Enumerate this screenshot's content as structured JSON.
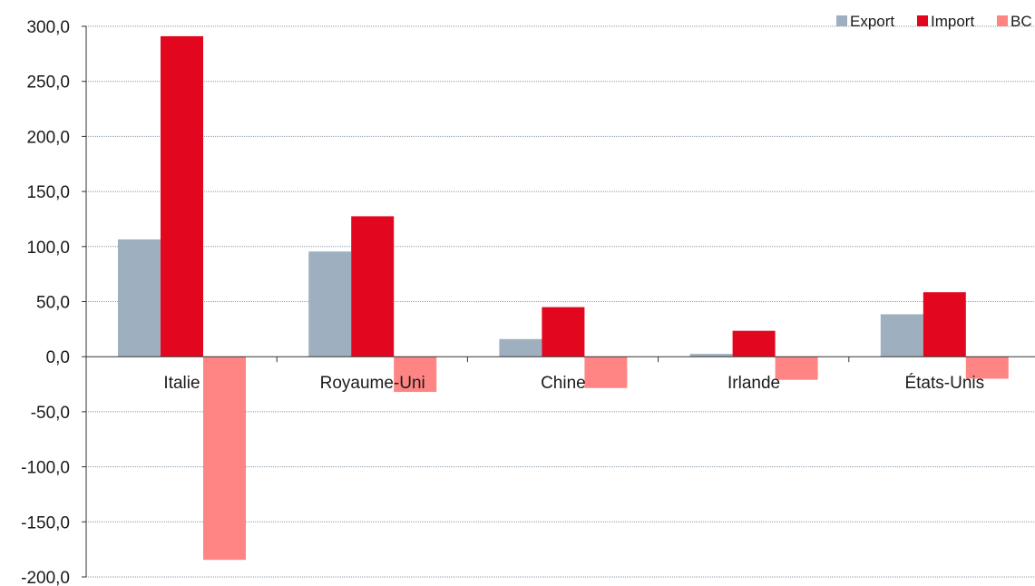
{
  "chart_data": {
    "type": "bar",
    "title": "",
    "xlabel": "",
    "ylabel": "",
    "categories": [
      "Italie",
      "Royaume-Uni",
      "Chine",
      "Irlande",
      "États-Unis"
    ],
    "series": [
      {
        "name": "Export",
        "color": "#9eb0bf",
        "values": [
          106.5,
          95.5,
          16.0,
          2.5,
          38.5
        ]
      },
      {
        "name": "Import",
        "color": "#e2061e",
        "values": [
          291.0,
          127.5,
          45.0,
          23.5,
          58.5
        ]
      },
      {
        "name": "BC",
        "color": "#ff8585",
        "values": [
          -184.5,
          -32.0,
          -28.5,
          -21.0,
          -20.0
        ]
      }
    ],
    "ylim": [
      -200,
      300
    ],
    "yticks": [
      300,
      250,
      200,
      150,
      100,
      50,
      0,
      -50,
      -100,
      -150,
      -200
    ],
    "ytick_labels": [
      "300,0",
      "250,0",
      "200,0",
      "150,0",
      "100,0",
      "50,0",
      "0,0",
      "-50,0",
      "-100,0",
      "-150,0",
      "-200,0"
    ],
    "grid": true,
    "legend_position": "top-right"
  }
}
